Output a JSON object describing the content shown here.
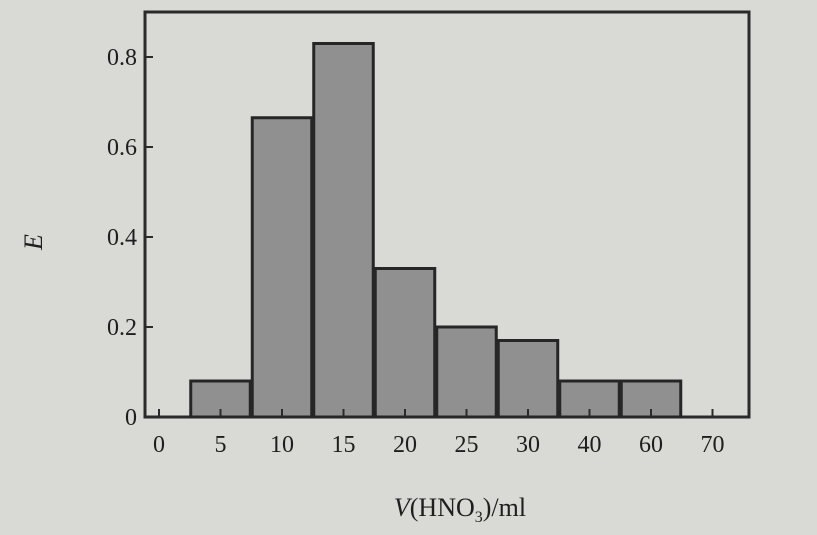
{
  "chart_data": {
    "type": "bar",
    "categories": [
      "5",
      "10",
      "15",
      "20",
      "25",
      "30",
      "40",
      "60"
    ],
    "values": [
      0.08,
      0.665,
      0.83,
      0.33,
      0.2,
      0.17,
      0.08,
      0.08
    ],
    "x_tick_labels": [
      "0",
      "5",
      "10",
      "15",
      "20",
      "25",
      "30",
      "40",
      "60",
      "70"
    ],
    "y_tick_labels": [
      "0",
      "0.2",
      "0.4",
      "0.6",
      "0.8"
    ],
    "y_ticks": [
      0,
      0.2,
      0.4,
      0.6,
      0.8
    ],
    "ylim": [
      0,
      0.9
    ],
    "ylabel": "E",
    "xlabel": {
      "var": "V",
      "open": "(HNO",
      "sub": "3",
      "close": ")/ml"
    },
    "grid": false,
    "legend": "none",
    "colors": {
      "bar_fill": "#909090",
      "bar_stroke": "#262626",
      "axis": "#2a2a2a",
      "background": "#d9d9d6"
    }
  }
}
